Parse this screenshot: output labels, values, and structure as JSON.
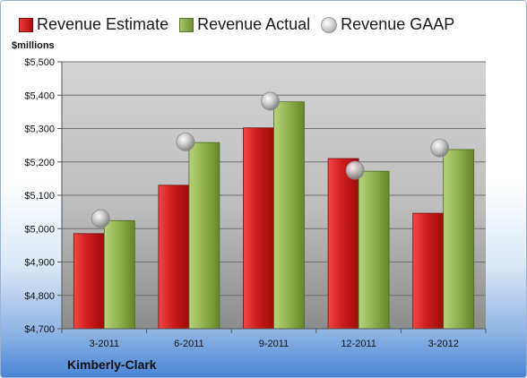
{
  "legend": {
    "estimate": "Revenue Estimate",
    "actual": "Revenue Actual",
    "gaap": "Revenue GAAP"
  },
  "company": "Kimberly-Clark",
  "colors": {
    "estimate": "#c41a1a",
    "actual": "#8aac48",
    "gaap": "#b0b0b0",
    "accent": "#4a86d6"
  },
  "chart_data": {
    "type": "bar",
    "ylabel": "$millions",
    "ylim": [
      4700,
      5500
    ],
    "y_ticks": [
      "$4,700",
      "$4,800",
      "$4,900",
      "$5,000",
      "$5,100",
      "$5,200",
      "$5,300",
      "$5,400",
      "$5,500"
    ],
    "grid": true,
    "legend_position": "top",
    "categories": [
      "3-2011",
      "6-2011",
      "9-2011",
      "12-2011",
      "3-2012"
    ],
    "series": [
      {
        "name": "Revenue Estimate",
        "type": "bar",
        "values": [
          4985,
          5130,
          5302,
          5210,
          5046
        ]
      },
      {
        "name": "Revenue Actual",
        "type": "bar",
        "values": [
          5024,
          5258,
          5380,
          5172,
          5237
        ]
      },
      {
        "name": "Revenue GAAP",
        "type": "scatter",
        "values": [
          5030,
          5260,
          5382,
          5175,
          5242
        ]
      }
    ]
  }
}
